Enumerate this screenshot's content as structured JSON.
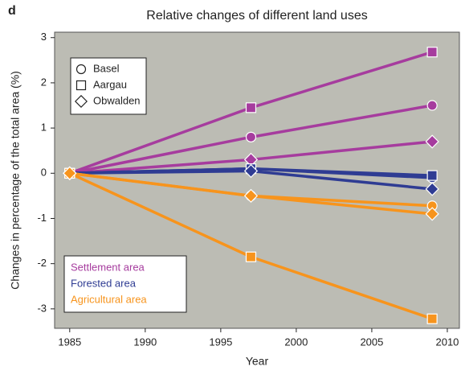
{
  "chart_data": {
    "type": "line",
    "panel_label": "d",
    "title": "Relative changes of different land uses",
    "x_label": "Year",
    "y_label": "Changes in percentage of the total area (%)",
    "x": [
      1985,
      1997,
      2009
    ],
    "xlim": [
      1984,
      2010.8
    ],
    "xticks": [
      1985,
      1990,
      1995,
      2000,
      2005,
      2010
    ],
    "ylim": [
      -3.43,
      3.12
    ],
    "yticks": [
      -3,
      -2,
      -1,
      0,
      1,
      2,
      3
    ],
    "regions": [
      {
        "name": "Basel",
        "marker": "circle"
      },
      {
        "name": "Aargau",
        "marker": "square"
      },
      {
        "name": "Obwalden",
        "marker": "diamond"
      }
    ],
    "land_uses": [
      {
        "name": "Settlement area",
        "color": "#a63c9e",
        "values": [
          [
            0,
            0.8,
            1.5
          ],
          [
            0,
            1.45,
            2.68
          ],
          [
            0,
            0.3,
            0.7
          ]
        ]
      },
      {
        "name": "Forested area",
        "color": "#2f3c93",
        "values": [
          [
            0,
            0.1,
            -0.1
          ],
          [
            0,
            0.1,
            -0.05
          ],
          [
            0,
            0.05,
            -0.35
          ]
        ]
      },
      {
        "name": "Agricultural area",
        "color": "#f7941d",
        "values": [
          [
            0,
            -0.5,
            -0.72
          ],
          [
            0,
            -1.85,
            -3.22
          ],
          [
            0,
            -0.5,
            -0.9
          ]
        ]
      }
    ]
  }
}
